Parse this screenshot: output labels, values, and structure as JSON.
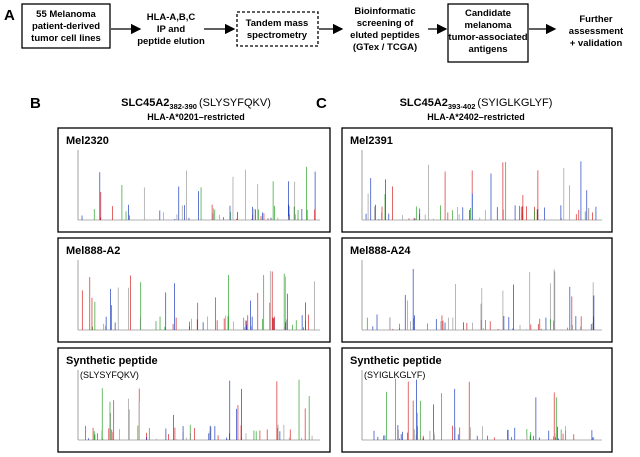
{
  "panel_a": {
    "label": "A",
    "steps": [
      {
        "lines": [
          "55 Melanoma",
          "patient-derived",
          "tumor cell lines"
        ]
      },
      {
        "lines": [
          "HLA-A,B,C",
          "IP and",
          "peptide elution"
        ]
      },
      {
        "lines": [
          "Tandem mass",
          "spectrometry"
        ]
      },
      {
        "lines": [
          "Bioinformatic",
          "screening of",
          "eluted peptides",
          "(GTex / TCGA)"
        ]
      },
      {
        "lines": [
          "Candidate",
          "melanoma",
          "tumor-associated",
          "antigens"
        ]
      },
      {
        "lines": [
          "Further",
          "assessment",
          "+ validation"
        ]
      }
    ]
  },
  "panel_b": {
    "label": "B",
    "title": {
      "gene": "SLC45A2",
      "range": "382-390",
      "peptide": "(SLYSYFQKV)"
    },
    "restriction": "HLA-A*0201–restricted",
    "spectra": [
      {
        "sample": "Mel2320"
      },
      {
        "sample": "Mel888-A2"
      },
      {
        "sample": "Synthetic peptide",
        "peptide": "(SLYSYFQKV)"
      }
    ]
  },
  "panel_c": {
    "label": "C",
    "title": {
      "gene": "SLC45A2",
      "range": "393-402",
      "peptide": "(SYIGLKGLYF)"
    },
    "restriction": "HLA-A*2402–restricted",
    "spectra": [
      {
        "sample": "Mel2391"
      },
      {
        "sample": "Mel888-A24"
      },
      {
        "sample": "Synthetic peptide",
        "peptide": "(SYIGLKGLYF)"
      }
    ]
  }
}
